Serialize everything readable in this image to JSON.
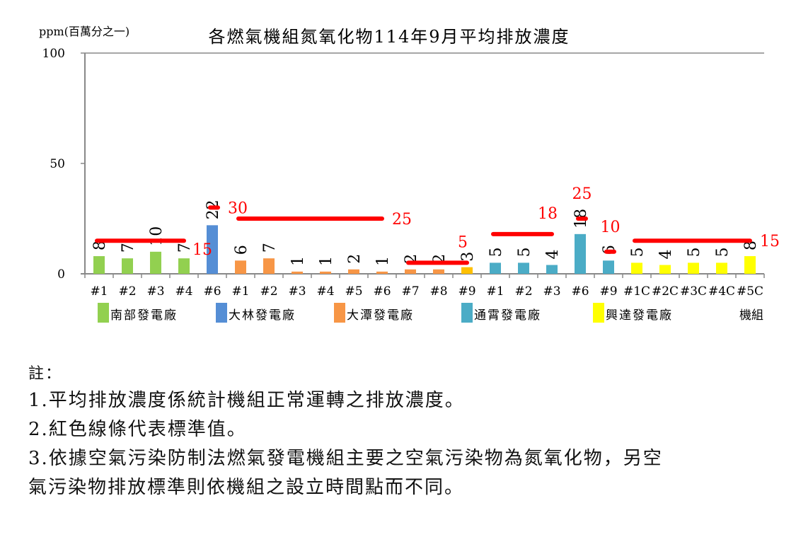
{
  "chart_data": {
    "type": "bar",
    "title": "各燃氣機組氮氧化物114年9月平均排放濃度",
    "ylabel": "ppm(百萬分之一)",
    "xlabel": "機組",
    "ylim": [
      0,
      100
    ],
    "yticks": [
      "0",
      "50",
      "100"
    ],
    "grid": false,
    "legend_position": "bottom",
    "categories": [
      "#1",
      "#2",
      "#3",
      "#4",
      "#6",
      "#1",
      "#2",
      "#3",
      "#4",
      "#5",
      "#6",
      "#7",
      "#8",
      "#9",
      "#1",
      "#2",
      "#3",
      "#6",
      "#9",
      "#1C",
      "#2C",
      "#3C",
      "#4C",
      "#5C"
    ],
    "values": [
      8,
      7,
      10,
      7,
      22,
      6,
      7,
      1,
      1,
      2,
      1,
      2,
      2,
      3,
      5,
      5,
      4,
      18,
      6,
      5,
      4,
      5,
      5,
      8
    ],
    "plants": [
      {
        "name": "南部發電廠",
        "color": "#92D050",
        "start": 0,
        "end": 3
      },
      {
        "name": "大林發電廠",
        "color": "#558ED5",
        "start": 4,
        "end": 4
      },
      {
        "name": "大潭發電廠",
        "color": "#F79646",
        "start": 5,
        "end": 13
      },
      {
        "name": "通霄發電廠",
        "color": "#4BACC6",
        "start": 14,
        "end": 18
      },
      {
        "name": "興達發電廠",
        "color": "#FFFF00",
        "start": 19,
        "end": 23
      }
    ],
    "highlight_bar_colors": {
      "13": "#FFC000"
    },
    "standards": [
      {
        "value": 15,
        "label": "15",
        "start": 0,
        "end": 3,
        "label_side": "right-below"
      },
      {
        "value": 30,
        "label": "30",
        "start": 4,
        "end": 4,
        "label_side": "right"
      },
      {
        "value": 25,
        "label": "25",
        "start": 5,
        "end": 10,
        "label_side": "right"
      },
      {
        "value": 5,
        "label": "5",
        "start": 11,
        "end": 13,
        "label_side": "above-end"
      },
      {
        "value": 18,
        "label": "18",
        "start": 14,
        "end": 16,
        "label_side": "above-end"
      },
      {
        "value": 25,
        "label": "25",
        "start": 17,
        "end": 17,
        "label_side": "above"
      },
      {
        "value": 10,
        "label": "10",
        "start": 18,
        "end": 18,
        "label_side": "above"
      },
      {
        "value": 15,
        "label": "15",
        "start": 19,
        "end": 23,
        "label_side": "right"
      }
    ],
    "standard_color": "#FF0000"
  },
  "notes": {
    "head": "註：",
    "lines": [
      "1.平均排放濃度係統計機組正常運轉之排放濃度。",
      "2.紅色線條代表標準值。",
      "3.依據空氣污染防制法燃氣發電機組主要之空氣污染物為氮氧化物，另空",
      "氣污染物排放標準則依機組之設立時間點而不同。"
    ]
  }
}
